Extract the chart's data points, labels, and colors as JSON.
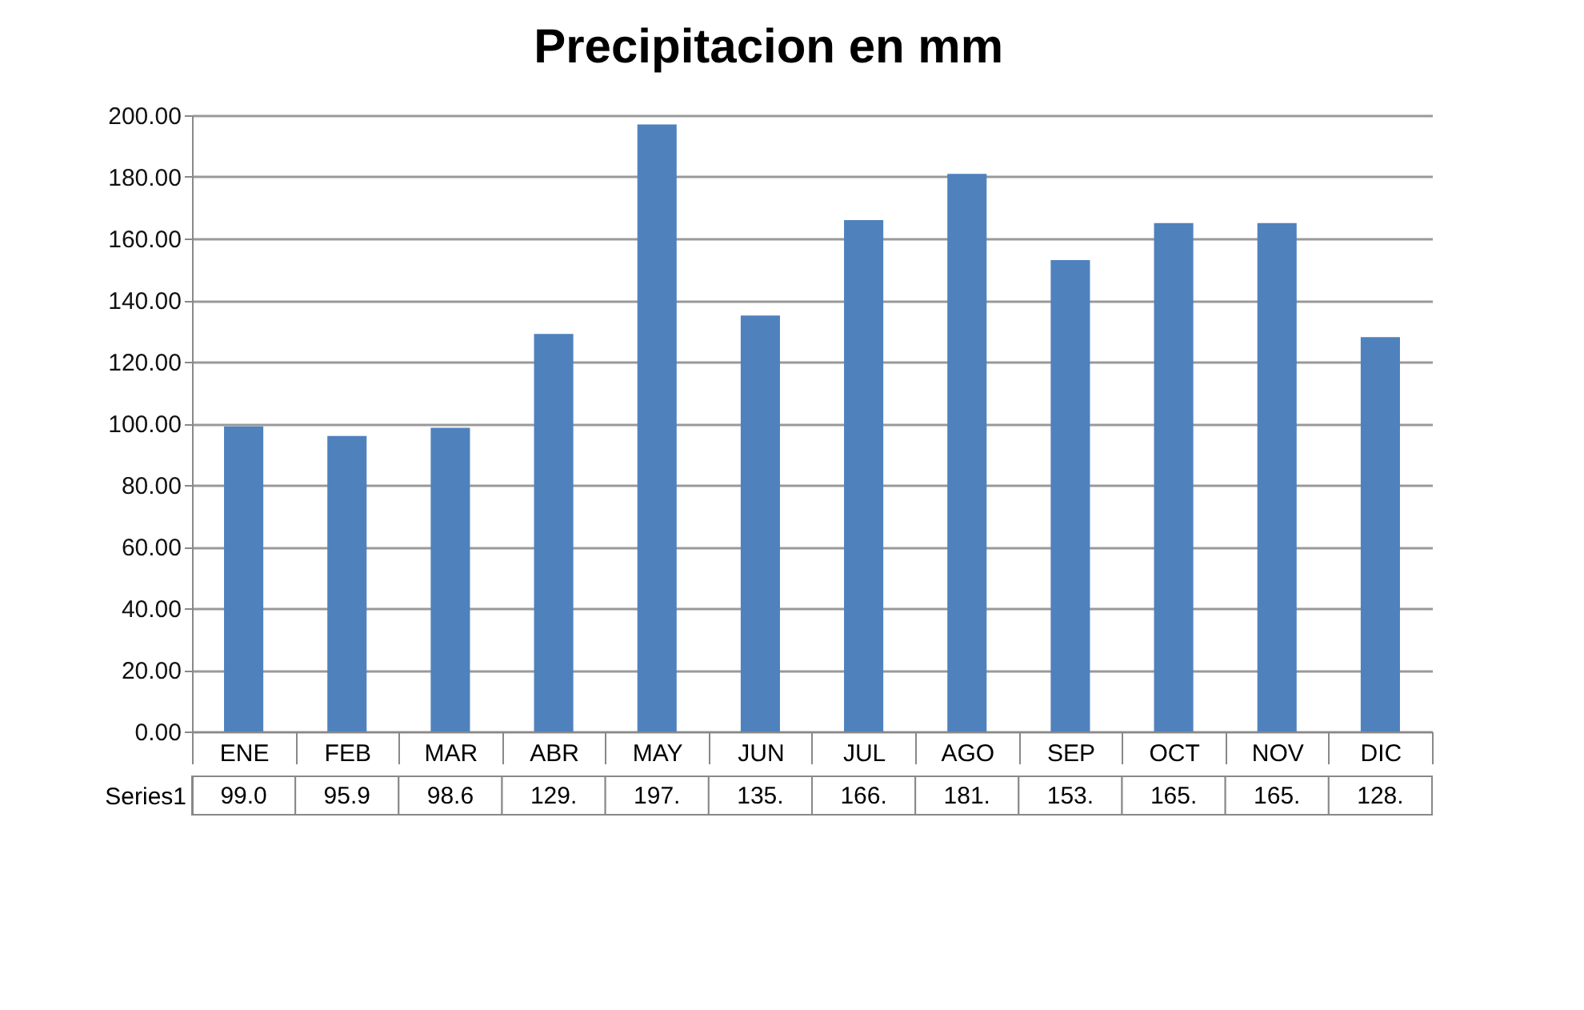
{
  "chart_data": {
    "type": "bar",
    "title": "Precipitacion en mm",
    "categories": [
      "ENE",
      "FEB",
      "MAR",
      "ABR",
      "MAY",
      "JUN",
      "JUL",
      "AGO",
      "SEP",
      "OCT",
      "NOV",
      "DIC"
    ],
    "series": [
      {
        "name": "Series1",
        "color": "#4f81bd",
        "values": [
          99.0,
          95.9,
          98.6,
          129,
          197,
          135,
          166,
          181,
          153,
          165,
          165,
          128
        ],
        "value_labels": [
          "99.0",
          "95.9",
          "98.6",
          "129.",
          "197.",
          "135.",
          "166.",
          "181.",
          "153.",
          "165.",
          "165.",
          "128."
        ]
      }
    ],
    "ylim": [
      0,
      200
    ],
    "yticks": [
      {
        "value": 0,
        "label": "0.00"
      },
      {
        "value": 20,
        "label": "20.00"
      },
      {
        "value": 40,
        "label": "40.00"
      },
      {
        "value": 60,
        "label": "60.00"
      },
      {
        "value": 80,
        "label": "80.00"
      },
      {
        "value": 100,
        "label": "100.00"
      },
      {
        "value": 120,
        "label": "120.00"
      },
      {
        "value": 140,
        "label": "140.00"
      },
      {
        "value": 160,
        "label": "160.00"
      },
      {
        "value": 180,
        "label": "180.00"
      },
      {
        "value": 200,
        "label": "200.00"
      }
    ],
    "grid": "y",
    "legend": false
  }
}
